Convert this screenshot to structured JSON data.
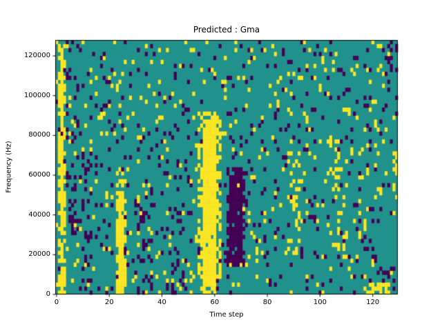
{
  "figure": {
    "title": "Predicted : Gma"
  },
  "chart_data": {
    "type": "heatmap",
    "title": "Predicted : Gma",
    "xlabel": "Time step",
    "ylabel": "Frequency (Hz)",
    "xlim": [
      0,
      130
    ],
    "ylim": [
      0,
      128000
    ],
    "x_ticks": [
      0,
      20,
      40,
      60,
      80,
      100,
      120
    ],
    "y_ticks": [
      0,
      20000,
      40000,
      60000,
      80000,
      100000,
      120000
    ],
    "grid_cols": 130,
    "grid_rows": 64,
    "legend": "none",
    "grid_lines": false,
    "classes": [
      {
        "name": "teal",
        "hex": "#21918c"
      },
      {
        "name": "yellow",
        "hex": "#fde725"
      },
      {
        "name": "purple",
        "hex": "#440154"
      }
    ],
    "background_class": "teal",
    "noise": {
      "seed": 1337,
      "yellow_density": 0.045,
      "purple_density": 0.05
    },
    "features": [
      {
        "x0": 1,
        "x1": 4,
        "y0": 0,
        "y1": 126000,
        "class": "yellow",
        "density": 0.55
      },
      {
        "x0": 2,
        "x1": 3,
        "y0": 0,
        "y1": 120000,
        "class": "yellow",
        "density": 0.9
      },
      {
        "x0": 4,
        "x1": 9,
        "y0": 30000,
        "y1": 128000,
        "class": "purple",
        "density": 0.15
      },
      {
        "x0": 10,
        "x1": 14,
        "y0": 0,
        "y1": 72000,
        "class": "purple",
        "density": 0.18
      },
      {
        "x0": 23,
        "x1": 27,
        "y0": 0,
        "y1": 58000,
        "class": "yellow",
        "density": 0.55
      },
      {
        "x0": 24,
        "x1": 26,
        "y0": 0,
        "y1": 52000,
        "class": "yellow",
        "density": 0.9
      },
      {
        "x0": 30,
        "x1": 37,
        "y0": 0,
        "y1": 52000,
        "class": "purple",
        "density": 0.15
      },
      {
        "x0": 44,
        "x1": 49,
        "y0": 0,
        "y1": 46000,
        "class": "purple",
        "density": 0.18
      },
      {
        "x0": 54,
        "x1": 63,
        "y0": 8000,
        "y1": 92000,
        "class": "yellow",
        "density": 0.45
      },
      {
        "x0": 56,
        "x1": 61,
        "y0": 4000,
        "y1": 88000,
        "class": "yellow",
        "density": 0.95
      },
      {
        "x0": 56,
        "x1": 61,
        "y0": 0,
        "y1": 6000,
        "class": "yellow",
        "density": 0.9
      },
      {
        "x0": 65,
        "x1": 72,
        "y0": 14000,
        "y1": 64000,
        "class": "purple",
        "density": 0.6
      },
      {
        "x0": 66,
        "x1": 71,
        "y0": 18000,
        "y1": 60000,
        "class": "purple",
        "density": 0.92
      },
      {
        "x0": 88,
        "x1": 93,
        "y0": 20000,
        "y1": 72000,
        "class": "yellow",
        "density": 0.18
      },
      {
        "x0": 104,
        "x1": 111,
        "y0": 20000,
        "y1": 82000,
        "class": "yellow",
        "density": 0.15
      },
      {
        "x0": 117,
        "x1": 127,
        "y0": 0,
        "y1": 6000,
        "class": "yellow",
        "density": 0.6
      },
      {
        "x0": 124,
        "x1": 129,
        "y0": 6000,
        "y1": 16000,
        "class": "purple",
        "density": 0.3
      },
      {
        "x0": 126,
        "x1": 130,
        "y0": 110000,
        "y1": 128000,
        "class": "purple",
        "density": 0.35
      },
      {
        "x0": 128,
        "x1": 130,
        "y0": 40000,
        "y1": 80000,
        "class": "yellow",
        "density": 0.25
      }
    ]
  }
}
